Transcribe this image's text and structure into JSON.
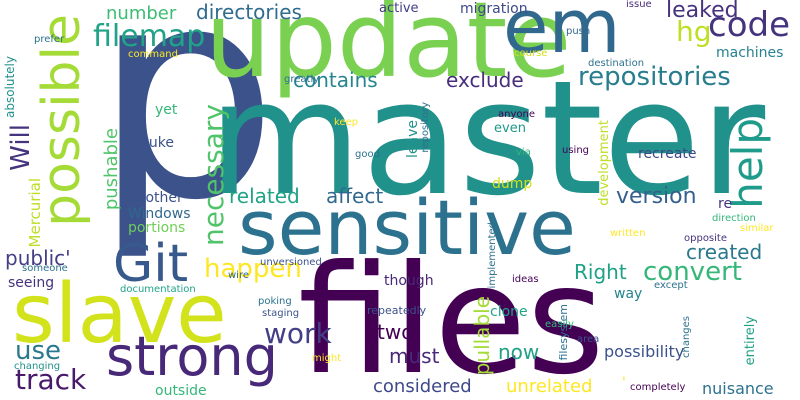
{
  "words": [
    {
      "text": "p",
      "color": "#3b528b"
    },
    {
      "text": "master",
      "color": "#21918c"
    },
    {
      "text": "files",
      "color": "#440154"
    },
    {
      "text": "update",
      "color": "#7ad151"
    },
    {
      "text": "sensitive",
      "color": "#2c728e"
    },
    {
      "text": "slave",
      "color": "#d2e21b"
    },
    {
      "text": "em",
      "color": "#31688e"
    },
    {
      "text": "strong",
      "color": "#482878"
    },
    {
      "text": "possible",
      "color": "#a5db36"
    },
    {
      "text": "Git",
      "color": "#38598c"
    },
    {
      "text": "help",
      "color": "#1e9b8a"
    },
    {
      "text": "repositories",
      "color": "#287d8e"
    },
    {
      "text": "filemap",
      "color": "#20a386"
    },
    {
      "text": "code",
      "color": "#46337e"
    },
    {
      "text": "hg",
      "color": "#bddf26"
    },
    {
      "text": "necessary",
      "color": "#50c46a"
    },
    {
      "text": "happen",
      "color": "#fde725"
    },
    {
      "text": "convert",
      "color": "#35b779"
    },
    {
      "text": "work",
      "color": "#433e85"
    },
    {
      "text": "track",
      "color": "#481a6c"
    },
    {
      "text": "use",
      "color": "#2a788e"
    },
    {
      "text": "contains",
      "color": "#25858e"
    },
    {
      "text": "exclude",
      "color": "#472d7b"
    },
    {
      "text": "directories",
      "color": "#2f6c8e"
    },
    {
      "text": "number",
      "color": "#3dbc74"
    },
    {
      "text": "leaked",
      "color": "#46337e"
    },
    {
      "text": "Will",
      "color": "#46337e"
    },
    {
      "text": "related",
      "color": "#20a386"
    },
    {
      "text": "affect",
      "color": "#31688e"
    },
    {
      "text": "version",
      "color": "#355f8d"
    },
    {
      "text": "created",
      "color": "#2a788e"
    },
    {
      "text": "pushable",
      "color": "#50c46a"
    },
    {
      "text": "pullable",
      "color": "#a5db36"
    },
    {
      "text": "Right",
      "color": "#1fa187"
    },
    {
      "text": "public'",
      "color": "#433e85"
    },
    {
      "text": "two",
      "color": "#440154"
    },
    {
      "text": "must",
      "color": "#482878"
    },
    {
      "text": "now",
      "color": "#1fa187"
    },
    {
      "text": "possibility",
      "color": "#3b528b"
    },
    {
      "text": "considered",
      "color": "#3e4989"
    },
    {
      "text": "unrelated",
      "color": "#fde725"
    },
    {
      "text": "nuisance",
      "color": "#2c728e"
    },
    {
      "text": "machines",
      "color": "#26828e"
    },
    {
      "text": "migration",
      "color": "#3e4989"
    },
    {
      "text": "active",
      "color": "#433e85"
    },
    {
      "text": "issue",
      "color": "#472d7b"
    },
    {
      "text": "another",
      "color": "#3b528b"
    },
    {
      "text": "Windows",
      "color": "#31688e"
    },
    {
      "text": "portions",
      "color": "#6ece58"
    },
    {
      "text": "yet",
      "color": "#35b779"
    },
    {
      "text": "nuke",
      "color": "#3b528b"
    },
    {
      "text": "Mercurial",
      "color": "#bddf26"
    },
    {
      "text": "seeing",
      "color": "#46337e"
    },
    {
      "text": "outside",
      "color": "#35b779"
    },
    {
      "text": "recreate",
      "color": "#3e4989"
    },
    {
      "text": "dump",
      "color": "#d2e21b"
    },
    {
      "text": "even",
      "color": "#1f988b"
    },
    {
      "text": "leave",
      "color": "#21918c"
    },
    {
      "text": "clone",
      "color": "#20a386"
    },
    {
      "text": "though",
      "color": "#482878"
    },
    {
      "text": "way",
      "color": "#25858e"
    },
    {
      "text": "re",
      "color": "#46337e"
    },
    {
      "text": "development",
      "color": "#bddf26"
    },
    {
      "text": "repeatedly",
      "color": "#3b528b"
    },
    {
      "text": "filesystem",
      "color": "#2c728e"
    },
    {
      "text": "entirely",
      "color": "#1fa187"
    },
    {
      "text": "absolutely",
      "color": "#21918c"
    },
    {
      "text": "prefer",
      "color": "#2c728e"
    },
    {
      "text": "command",
      "color": "#fde725"
    },
    {
      "text": "push",
      "color": "#31688e"
    },
    {
      "text": "course",
      "color": "#d2e21b"
    },
    {
      "text": "destination",
      "color": "#2c728e"
    },
    {
      "text": "greatly",
      "color": "#2c728e"
    },
    {
      "text": "anyone",
      "color": "#440154"
    },
    {
      "text": "keep",
      "color": "#fde725"
    },
    {
      "text": "repository",
      "color": "#2c728e"
    },
    {
      "text": "good",
      "color": "#2c728e"
    },
    {
      "text": "via",
      "color": "#35b779"
    },
    {
      "text": "using",
      "color": "#440154"
    },
    {
      "text": "direction",
      "color": "#35b779"
    },
    {
      "text": "similar",
      "color": "#fde725"
    },
    {
      "text": "opposite",
      "color": "#46337e"
    },
    {
      "text": "written",
      "color": "#fde725"
    },
    {
      "text": "except",
      "color": "#2c728e"
    },
    {
      "text": "unversioned",
      "color": "#3b528b"
    },
    {
      "text": "implemented",
      "color": "#2c728e"
    },
    {
      "text": "ideas",
      "color": "#440154"
    },
    {
      "text": "someone",
      "color": "#2c728e"
    },
    {
      "text": "wire",
      "color": "#31688e"
    },
    {
      "text": "documentation",
      "color": "#20a386"
    },
    {
      "text": "poking",
      "color": "#2c728e"
    },
    {
      "text": "staging",
      "color": "#3b528b"
    },
    {
      "text": "changes",
      "color": "#2c728e"
    },
    {
      "text": "easily",
      "color": "#35b779"
    },
    {
      "text": "area",
      "color": "#3b528b"
    },
    {
      "text": "changing",
      "color": "#21918c"
    },
    {
      "text": "might",
      "color": "#fde725"
    },
    {
      "text": "completely",
      "color": "#440154"
    },
    {
      "text": "'",
      "color": "#fde725"
    }
  ]
}
